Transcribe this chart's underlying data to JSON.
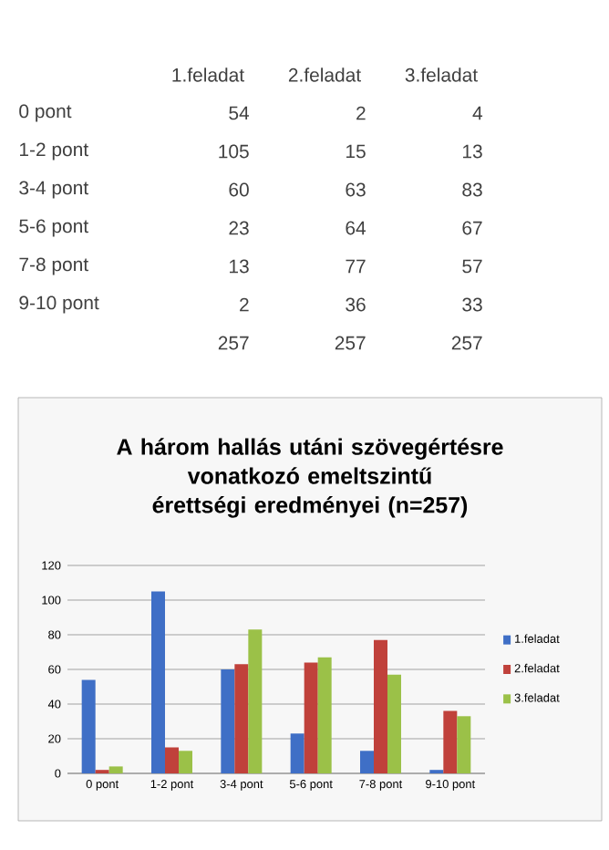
{
  "chart_data": [
    {
      "type": "heatmap",
      "categories": [
        "1.feladat",
        "2.feladat",
        "3.feladat"
      ],
      "y_categories": [
        "0 pont",
        "1-2 pont",
        "3-4 pont",
        "5-6 pont",
        "7-8 pont",
        "9-10 pont",
        null
      ],
      "cells": [
        [
          54,
          2,
          4
        ],
        [
          105,
          15,
          13
        ],
        [
          60,
          63,
          83
        ],
        [
          23,
          64,
          67
        ],
        [
          13,
          77,
          57
        ],
        [
          2,
          36,
          33
        ],
        [
          257,
          257,
          257
        ]
      ],
      "data_labels": true
    },
    {
      "type": "bar",
      "title": "A három hallás utáni szövegértésre vonatkozó emeltszintű érettségi eredményei (n=257)",
      "categories": [
        "0 pont",
        "1-2 pont",
        "3-4 pont",
        "5-6 pont",
        "7-8 pont",
        "9-10 pont"
      ],
      "series": [
        {
          "name": "1.feladat",
          "color": "#3f6fc6",
          "values": [
            54,
            105,
            60,
            23,
            13,
            2
          ]
        },
        {
          "name": "2.feladat",
          "color": "#c0413b",
          "values": [
            2,
            15,
            63,
            64,
            77,
            36
          ]
        },
        {
          "name": "3.feladat",
          "color": "#9bc148",
          "values": [
            4,
            13,
            83,
            67,
            57,
            33
          ]
        }
      ],
      "ylim": [
        0,
        120
      ],
      "yticks": [
        0,
        20,
        40,
        60,
        80,
        100,
        120
      ],
      "grid": "y",
      "legend": "right"
    }
  ]
}
